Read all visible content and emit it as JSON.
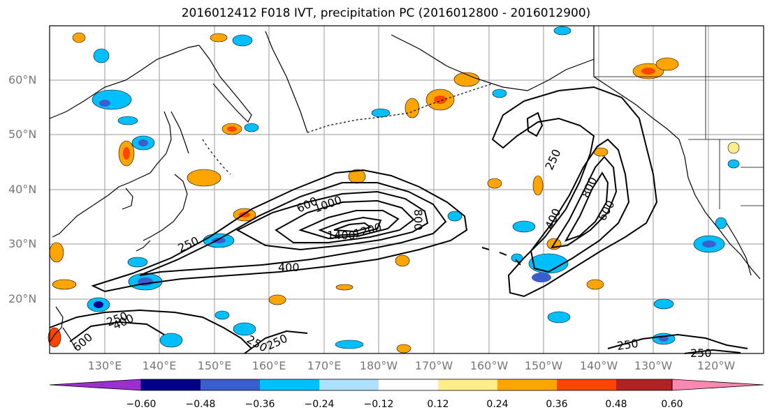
{
  "title": "2016012412 F018 IVT, precipitation PC (2016012800 - 2016012900)",
  "lat_labels": [
    "60°N",
    "50°N",
    "40°N",
    "30°N",
    "20°N"
  ],
  "lon_labels": [
    "130°E",
    "140°E",
    "150°E",
    "160°E",
    "170°E",
    "180°W",
    "170°W",
    "160°W",
    "150°W",
    "140°W",
    "130°W",
    "120°W"
  ],
  "colorbar": {
    "ticks": [
      "−0.60",
      "−0.48",
      "−0.36",
      "−0.24",
      "−0.12",
      "0.12",
      "0.24",
      "0.36",
      "0.48",
      "0.60"
    ],
    "colors": [
      "#9b30d0",
      "#00008b",
      "#3a5fcd",
      "#00bfff",
      "#b0e0ff",
      "#ffffff",
      "#ffec8b",
      "#ffa500",
      "#ff4500",
      "#b22222",
      "#ff88b0"
    ]
  },
  "contour_labels": [
    "250",
    "400",
    "600",
    "800",
    "1000",
    "1200",
    "1400"
  ],
  "colors": {
    "pos_light": "#ffec8b",
    "pos_mid": "#ffa500",
    "pos_high": "#ff4500",
    "neg_light": "#b0e0ff",
    "neg_mid": "#00bfff",
    "neg_high": "#3a5fcd"
  }
}
